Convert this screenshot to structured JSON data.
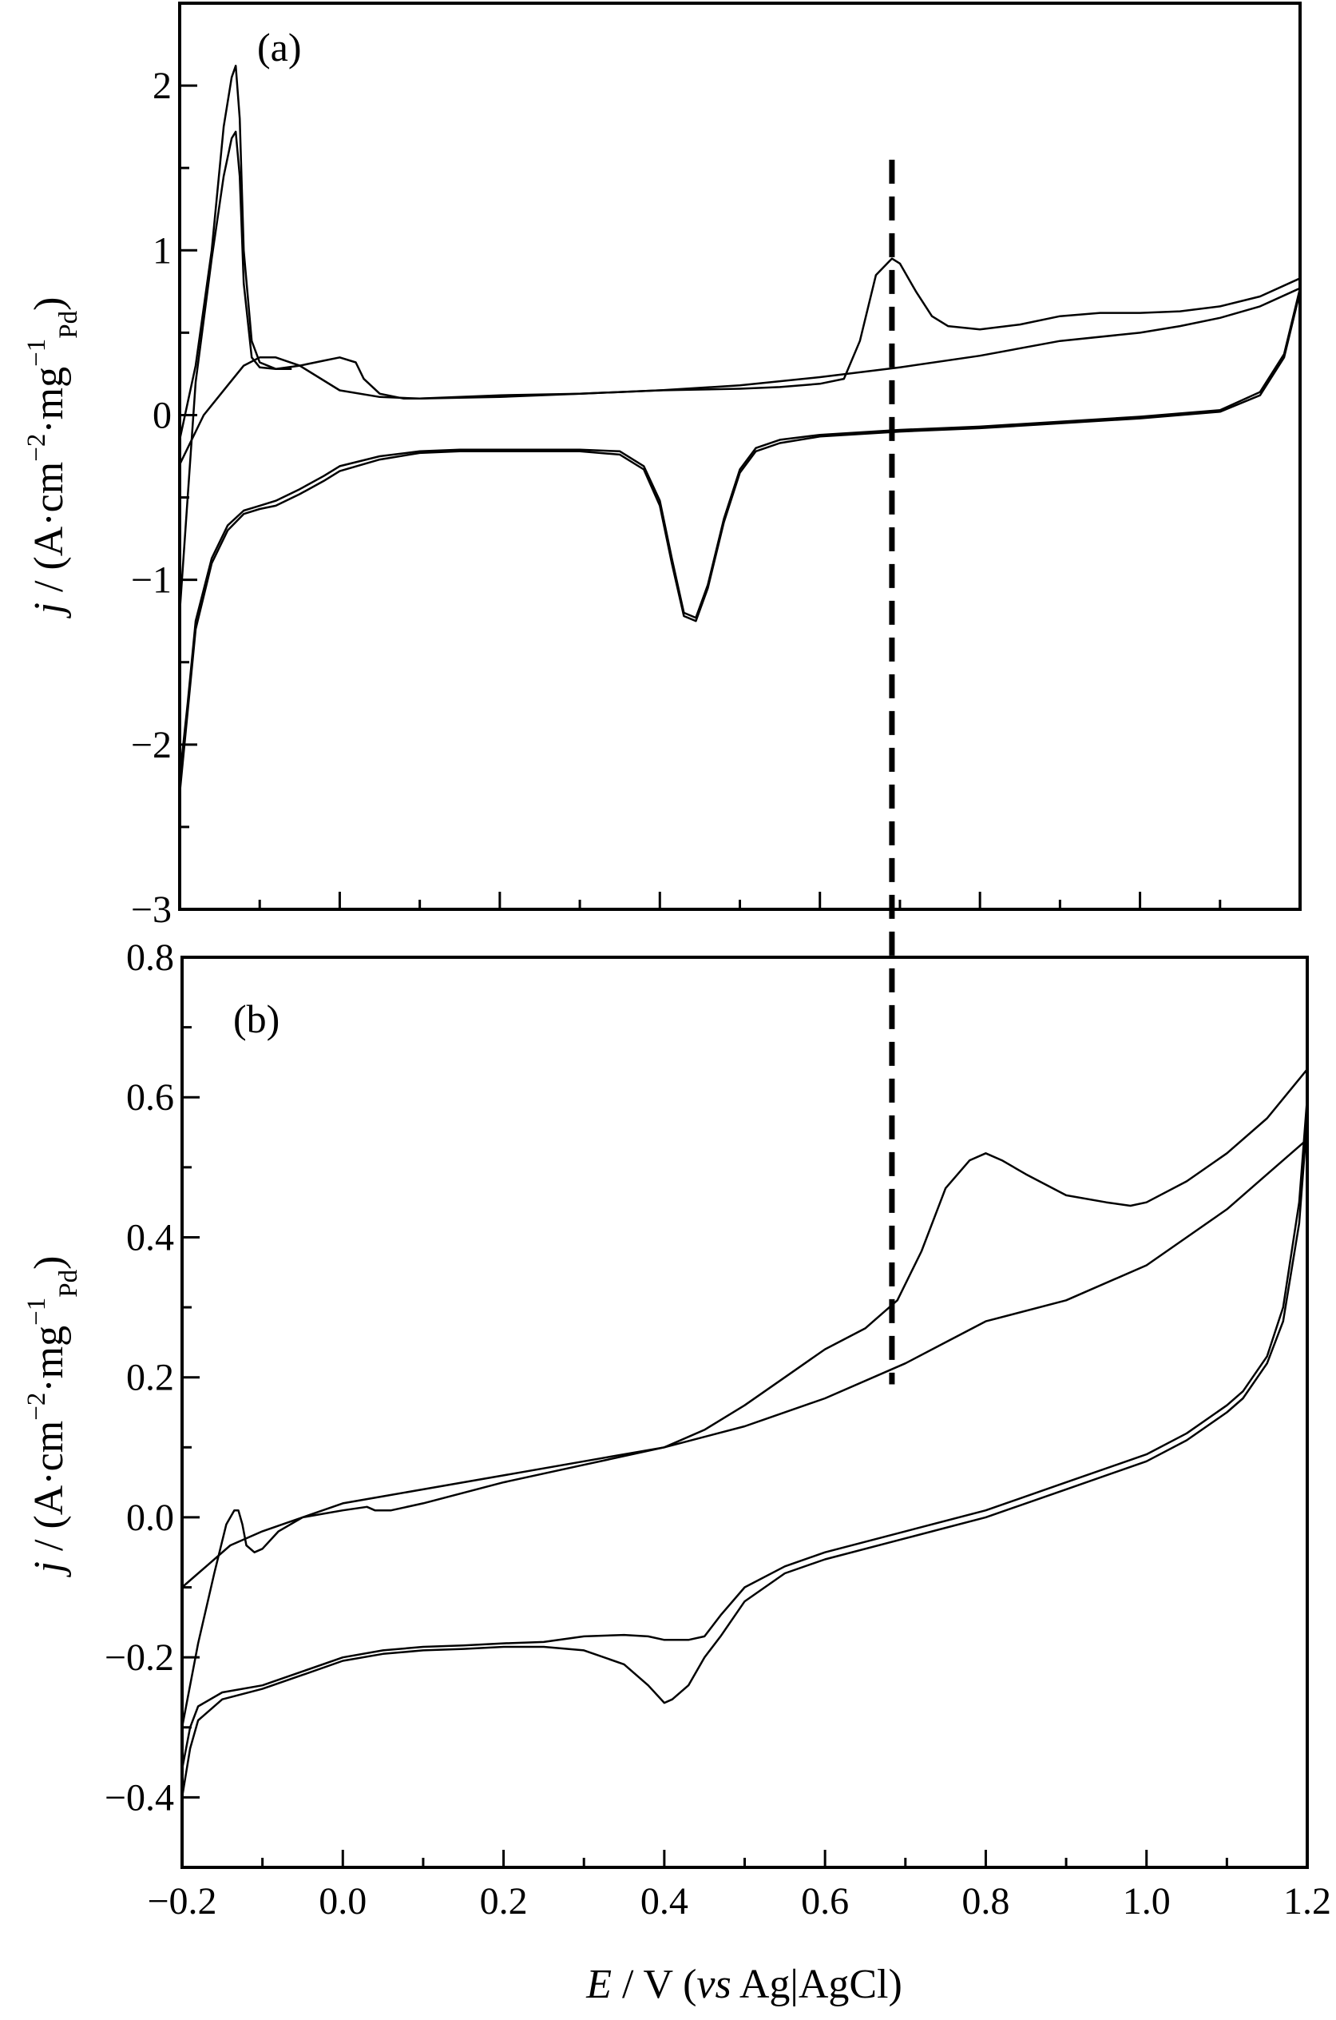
{
  "chart_data": [
    {
      "type": "line",
      "panel_label": "(a)",
      "ylabel": {
        "j": "j",
        "rest": " / (A·cm",
        "sup1": "−2",
        "mid": "·mg",
        "sup2": "−1",
        "sub": "Pd",
        "close": ")"
      },
      "xlim": [
        -0.2,
        1.2
      ],
      "ylim": [
        -3,
        2.5
      ],
      "yticks": [
        {
          "value": 2,
          "label": "2"
        },
        {
          "value": 1,
          "label": "1"
        },
        {
          "value": 0,
          "label": "0"
        },
        {
          "value": -1,
          "label": "−1"
        },
        {
          "value": -2,
          "label": "−2"
        },
        {
          "value": -3,
          "label": "−3"
        }
      ],
      "grid": false,
      "series": [
        {
          "x": [
            -0.2,
            -0.18,
            -0.16,
            -0.145,
            -0.135,
            -0.13,
            -0.125,
            -0.12,
            -0.11,
            -0.1,
            -0.08,
            -0.05,
            -0.02,
            0.0,
            0.02,
            0.03,
            0.05,
            0.08,
            0.1,
            0.2,
            0.3,
            0.4,
            0.5,
            0.55,
            0.6,
            0.63,
            0.65,
            0.67,
            0.69,
            0.7,
            0.72,
            0.74,
            0.76,
            0.8,
            0.85,
            0.9,
            0.95,
            1.0,
            1.05,
            1.1,
            1.15,
            1.2
          ],
          "y": [
            -0.15,
            0.3,
            1.0,
            1.75,
            2.05,
            2.12,
            1.8,
            1.0,
            0.45,
            0.32,
            0.28,
            0.3,
            0.33,
            0.35,
            0.32,
            0.22,
            0.13,
            0.1,
            0.1,
            0.11,
            0.13,
            0.15,
            0.16,
            0.17,
            0.19,
            0.22,
            0.45,
            0.85,
            0.95,
            0.92,
            0.75,
            0.6,
            0.54,
            0.52,
            0.55,
            0.6,
            0.62,
            0.62,
            0.63,
            0.66,
            0.72,
            0.83
          ]
        },
        {
          "x": [
            -0.2,
            -0.18,
            -0.16,
            -0.145,
            -0.135,
            -0.13,
            -0.125,
            -0.12,
            -0.11,
            -0.1,
            -0.08,
            -0.06
          ],
          "y": [
            -1.2,
            0.2,
            0.95,
            1.45,
            1.68,
            1.72,
            1.45,
            0.8,
            0.35,
            0.29,
            0.28,
            0.28
          ]
        },
        {
          "x": [
            -0.2,
            -0.17,
            -0.14,
            -0.12,
            -0.1,
            -0.08,
            -0.05,
            0.0,
            0.05,
            0.1,
            0.2,
            0.3,
            0.4,
            0.5,
            0.6,
            0.7,
            0.8,
            0.9,
            1.0,
            1.05,
            1.1,
            1.15,
            1.2
          ],
          "y": [
            -0.3,
            0.0,
            0.18,
            0.3,
            0.35,
            0.35,
            0.3,
            0.15,
            0.11,
            0.1,
            0.12,
            0.13,
            0.15,
            0.18,
            0.23,
            0.29,
            0.36,
            0.45,
            0.5,
            0.54,
            0.59,
            0.66,
            0.77
          ]
        },
        {
          "x": [
            1.2,
            1.18,
            1.15,
            1.1,
            1.0,
            0.9,
            0.8,
            0.7,
            0.6,
            0.55,
            0.52,
            0.5,
            0.48,
            0.46,
            0.445,
            0.43,
            0.415,
            0.4,
            0.38,
            0.35,
            0.3,
            0.25,
            0.2,
            0.15,
            0.1,
            0.05,
            0.0,
            -0.02,
            -0.05,
            -0.08,
            -0.1,
            -0.12,
            -0.14,
            -0.16,
            -0.18,
            -0.19,
            -0.2
          ],
          "y": [
            0.75,
            0.35,
            0.12,
            0.02,
            -0.02,
            -0.05,
            -0.08,
            -0.1,
            -0.13,
            -0.17,
            -0.22,
            -0.35,
            -0.65,
            -1.05,
            -1.25,
            -1.22,
            -0.9,
            -0.55,
            -0.33,
            -0.24,
            -0.22,
            -0.22,
            -0.22,
            -0.22,
            -0.23,
            -0.27,
            -0.34,
            -0.4,
            -0.48,
            -0.55,
            -0.57,
            -0.6,
            -0.7,
            -0.9,
            -1.3,
            -1.8,
            -2.3
          ]
        },
        {
          "x": [
            1.2,
            1.18,
            1.15,
            1.1,
            1.0,
            0.9,
            0.8,
            0.7,
            0.6,
            0.55,
            0.52,
            0.5,
            0.48,
            0.46,
            0.445,
            0.43,
            0.415,
            0.4,
            0.38,
            0.35,
            0.3,
            0.25,
            0.2,
            0.15,
            0.1,
            0.05,
            0.0,
            -0.02,
            -0.05,
            -0.08,
            -0.1,
            -0.12,
            -0.14,
            -0.16,
            -0.18,
            -0.19,
            -0.2
          ],
          "y": [
            0.77,
            0.37,
            0.14,
            0.03,
            -0.01,
            -0.04,
            -0.07,
            -0.09,
            -0.12,
            -0.15,
            -0.2,
            -0.33,
            -0.63,
            -1.03,
            -1.23,
            -1.2,
            -0.87,
            -0.52,
            -0.31,
            -0.22,
            -0.21,
            -0.21,
            -0.21,
            -0.21,
            -0.22,
            -0.25,
            -0.31,
            -0.37,
            -0.45,
            -0.52,
            -0.55,
            -0.58,
            -0.67,
            -0.87,
            -1.25,
            -1.75,
            -2.2
          ]
        }
      ]
    },
    {
      "type": "line",
      "panel_label": "(b)",
      "ylabel": {
        "j": "j",
        "rest": " / (A·cm",
        "sup1": "−2",
        "mid": "·mg",
        "sup2": "−1",
        "sub": "Pd",
        "close": ")"
      },
      "xlabel": {
        "E": "E",
        "mid": " / V (",
        "vs": "vs",
        "rest": " Ag|AgCl)"
      },
      "xlim": [
        -0.2,
        1.2
      ],
      "ylim": [
        -0.5,
        0.8
      ],
      "xticks": [
        {
          "value": -0.2,
          "label": "−0.2"
        },
        {
          "value": 0.0,
          "label": "0.0"
        },
        {
          "value": 0.2,
          "label": "0.2"
        },
        {
          "value": 0.4,
          "label": "0.4"
        },
        {
          "value": 0.6,
          "label": "0.6"
        },
        {
          "value": 0.8,
          "label": "0.8"
        },
        {
          "value": 1.0,
          "label": "1.0"
        },
        {
          "value": 1.2,
          "label": "1.2"
        }
      ],
      "yticks": [
        {
          "value": 0.8,
          "label": "0.8"
        },
        {
          "value": 0.6,
          "label": "0.6"
        },
        {
          "value": 0.4,
          "label": "0.4"
        },
        {
          "value": 0.2,
          "label": "0.2"
        },
        {
          "value": 0.0,
          "label": "0.0"
        },
        {
          "value": -0.2,
          "label": "−0.2"
        },
        {
          "value": -0.4,
          "label": "−0.4"
        }
      ],
      "grid": false,
      "series": [
        {
          "x": [
            -0.2,
            -0.18,
            -0.16,
            -0.145,
            -0.135,
            -0.13,
            -0.125,
            -0.12,
            -0.11,
            -0.1,
            -0.08,
            -0.05,
            0.0,
            0.03,
            0.04,
            0.06,
            0.1,
            0.2,
            0.3,
            0.4,
            0.45,
            0.5,
            0.55,
            0.6,
            0.65,
            0.69,
            0.72,
            0.75,
            0.78,
            0.8,
            0.82,
            0.85,
            0.9,
            0.95,
            0.98,
            1.0,
            1.05,
            1.1,
            1.15,
            1.2
          ],
          "y": [
            -0.3,
            -0.18,
            -0.08,
            -0.01,
            0.01,
            0.01,
            -0.01,
            -0.04,
            -0.05,
            -0.045,
            -0.02,
            0.0,
            0.01,
            0.015,
            0.01,
            0.01,
            0.02,
            0.05,
            0.075,
            0.1,
            0.125,
            0.16,
            0.2,
            0.24,
            0.27,
            0.31,
            0.38,
            0.47,
            0.51,
            0.52,
            0.51,
            0.49,
            0.46,
            0.45,
            0.445,
            0.45,
            0.48,
            0.52,
            0.57,
            0.64
          ]
        },
        {
          "x": [
            -0.2,
            -0.17,
            -0.14,
            -0.1,
            -0.05,
            0.0,
            0.05,
            0.1,
            0.2,
            0.3,
            0.4,
            0.5,
            0.6,
            0.7,
            0.75,
            0.8,
            0.9,
            1.0,
            1.05,
            1.1,
            1.15,
            1.2
          ],
          "y": [
            -0.1,
            -0.07,
            -0.04,
            -0.02,
            0.0,
            0.02,
            0.03,
            0.04,
            0.06,
            0.08,
            0.1,
            0.13,
            0.17,
            0.22,
            0.25,
            0.28,
            0.31,
            0.36,
            0.4,
            0.44,
            0.49,
            0.54
          ]
        },
        {
          "x": [
            1.2,
            1.19,
            1.17,
            1.15,
            1.12,
            1.1,
            1.05,
            1.0,
            0.9,
            0.8,
            0.7,
            0.6,
            0.55,
            0.5,
            0.47,
            0.45,
            0.43,
            0.4,
            0.38,
            0.35,
            0.3,
            0.25,
            0.2,
            0.15,
            0.1,
            0.05,
            0.0,
            -0.05,
            -0.1,
            -0.15,
            -0.18,
            -0.19,
            -0.2
          ],
          "y": [
            0.6,
            0.45,
            0.3,
            0.23,
            0.18,
            0.16,
            0.12,
            0.09,
            0.05,
            0.01,
            -0.02,
            -0.05,
            -0.07,
            -0.1,
            -0.14,
            -0.17,
            -0.175,
            -0.175,
            -0.17,
            -0.168,
            -0.17,
            -0.178,
            -0.18,
            -0.183,
            -0.185,
            -0.19,
            -0.2,
            -0.22,
            -0.24,
            -0.25,
            -0.27,
            -0.3,
            -0.36
          ]
        },
        {
          "x": [
            1.2,
            1.19,
            1.17,
            1.15,
            1.12,
            1.1,
            1.05,
            1.0,
            0.9,
            0.8,
            0.7,
            0.6,
            0.55,
            0.5,
            0.47,
            0.45,
            0.43,
            0.41,
            0.4,
            0.38,
            0.35,
            0.3,
            0.25,
            0.2,
            0.15,
            0.1,
            0.05,
            0.0,
            -0.05,
            -0.1,
            -0.15,
            -0.18,
            -0.19,
            -0.2
          ],
          "y": [
            0.57,
            0.42,
            0.28,
            0.22,
            0.17,
            0.15,
            0.11,
            0.08,
            0.04,
            0.0,
            -0.03,
            -0.06,
            -0.08,
            -0.12,
            -0.17,
            -0.2,
            -0.24,
            -0.26,
            -0.265,
            -0.24,
            -0.21,
            -0.19,
            -0.185,
            -0.185,
            -0.188,
            -0.19,
            -0.195,
            -0.205,
            -0.225,
            -0.245,
            -0.26,
            -0.29,
            -0.33,
            -0.4
          ]
        }
      ]
    }
  ],
  "reference_line": {
    "x": 0.69,
    "style": "dashed"
  }
}
